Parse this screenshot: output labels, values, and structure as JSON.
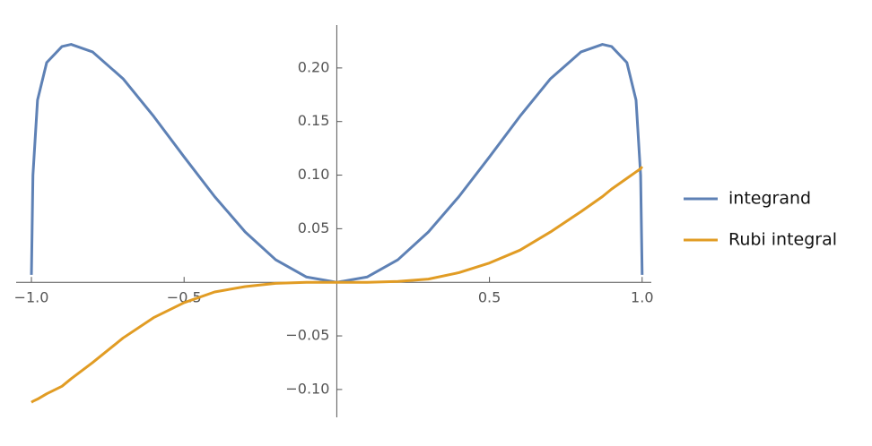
{
  "chart_data": {
    "type": "line",
    "x": [
      -1,
      -0.995,
      -0.98,
      -0.95,
      -0.9,
      -0.87,
      -0.8,
      -0.7,
      -0.6,
      -0.5,
      -0.4,
      -0.3,
      -0.2,
      -0.1,
      0,
      0.1,
      0.2,
      0.3,
      0.4,
      0.5,
      0.6,
      0.7,
      0.8,
      0.87,
      0.9,
      0.95,
      0.98,
      0.995,
      1
    ],
    "series": [
      {
        "name": "integrand",
        "color": "#5e81b5",
        "values": [
          0.007,
          0.1,
          0.17,
          0.205,
          0.22,
          0.222,
          0.215,
          0.19,
          0.155,
          0.117,
          0.08,
          0.047,
          0.021,
          0.005,
          0,
          0.005,
          0.021,
          0.047,
          0.08,
          0.117,
          0.155,
          0.19,
          0.215,
          0.222,
          0.22,
          0.205,
          0.17,
          0.1,
          0.007
        ]
      },
      {
        "name": "Rubi integral",
        "color": "#e19c24",
        "values": [
          -0.112,
          -0.111,
          -0.109,
          -0.104,
          -0.097,
          -0.09,
          -0.075,
          -0.052,
          -0.033,
          -0.019,
          -0.009,
          -0.004,
          -0.001,
          0,
          0,
          0,
          0.0008,
          0.003,
          0.009,
          0.018,
          0.03,
          0.047,
          0.066,
          0.08,
          0.087,
          0.097,
          0.103,
          0.106,
          0.108
        ]
      }
    ],
    "xlim": [
      -1.05,
      1.03
    ],
    "ylim": [
      -0.126,
      0.24
    ],
    "xticks": [
      {
        "value": -1,
        "label": "−1.0"
      },
      {
        "value": -0.5,
        "label": "−0.5"
      },
      0.5,
      {
        "value": 1,
        "label": "1.0"
      }
    ],
    "yticks": [
      {
        "value": -0.1,
        "label": "−0.10"
      },
      {
        "value": -0.05,
        "label": "−0.05"
      },
      0.05,
      {
        "value": 0.1,
        "label": "0.10"
      },
      0.15,
      {
        "value": 0.2,
        "label": "0.20"
      }
    ],
    "legend": "right"
  }
}
